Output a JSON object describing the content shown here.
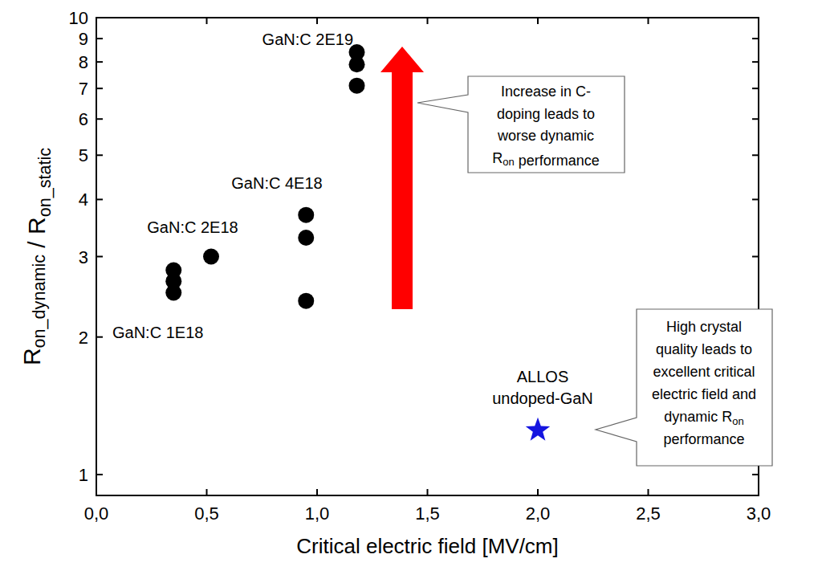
{
  "chart_data": {
    "type": "scatter",
    "x_label": "Critical electric field [MV/cm]",
    "y_label": "Ron_dynamic / Ron_static",
    "log": "y",
    "grid": false,
    "xlim": [
      0,
      3.0
    ],
    "ylim": [
      0.9,
      10
    ],
    "xticks": [
      {
        "value": 0,
        "label": "0,0"
      },
      {
        "value": 0.5,
        "label": "0,5"
      },
      {
        "value": 1.0,
        "label": "1,0"
      },
      {
        "value": 1.5,
        "label": "1,5"
      },
      {
        "value": 2.0,
        "label": "2,0"
      },
      {
        "value": 2.5,
        "label": "2,5"
      },
      {
        "value": 3.0,
        "label": "3,0"
      }
    ],
    "yticks": [
      1,
      2,
      3,
      4,
      5,
      6,
      7,
      8,
      9,
      10
    ],
    "series": [
      {
        "name": "GaN:C 1E18",
        "color": "#000000",
        "marker": "circle",
        "x": [
          0.35,
          0.35,
          0.35
        ],
        "values": [
          2.8,
          2.65,
          2.5
        ]
      },
      {
        "name": "GaN:C 2E18",
        "color": "#000000",
        "marker": "circle",
        "x": [
          0.52
        ],
        "values": [
          3.0
        ]
      },
      {
        "name": "GaN:C 4E18",
        "color": "#000000",
        "marker": "circle",
        "x": [
          0.95,
          0.95,
          0.95
        ],
        "values": [
          3.7,
          3.3,
          2.4
        ]
      },
      {
        "name": "GaN:C 2E19",
        "color": "#000000",
        "marker": "circle",
        "x": [
          1.18,
          1.18,
          1.18
        ],
        "values": [
          8.4,
          7.9,
          7.1
        ]
      },
      {
        "name": "ALLOS undoped-GaN",
        "color": "#1515e0",
        "marker": "star",
        "x": [
          2.0
        ],
        "values": [
          1.25
        ]
      }
    ],
    "annotations": [
      {
        "lines": [
          "Increase in C-",
          "doping leads to",
          "worse dynamic",
          "Ron performance"
        ]
      },
      {
        "lines": [
          "High crystal",
          "quality leads to",
          "excellent critical",
          "electric field and",
          "dynamic Ron",
          "performance"
        ]
      }
    ]
  }
}
